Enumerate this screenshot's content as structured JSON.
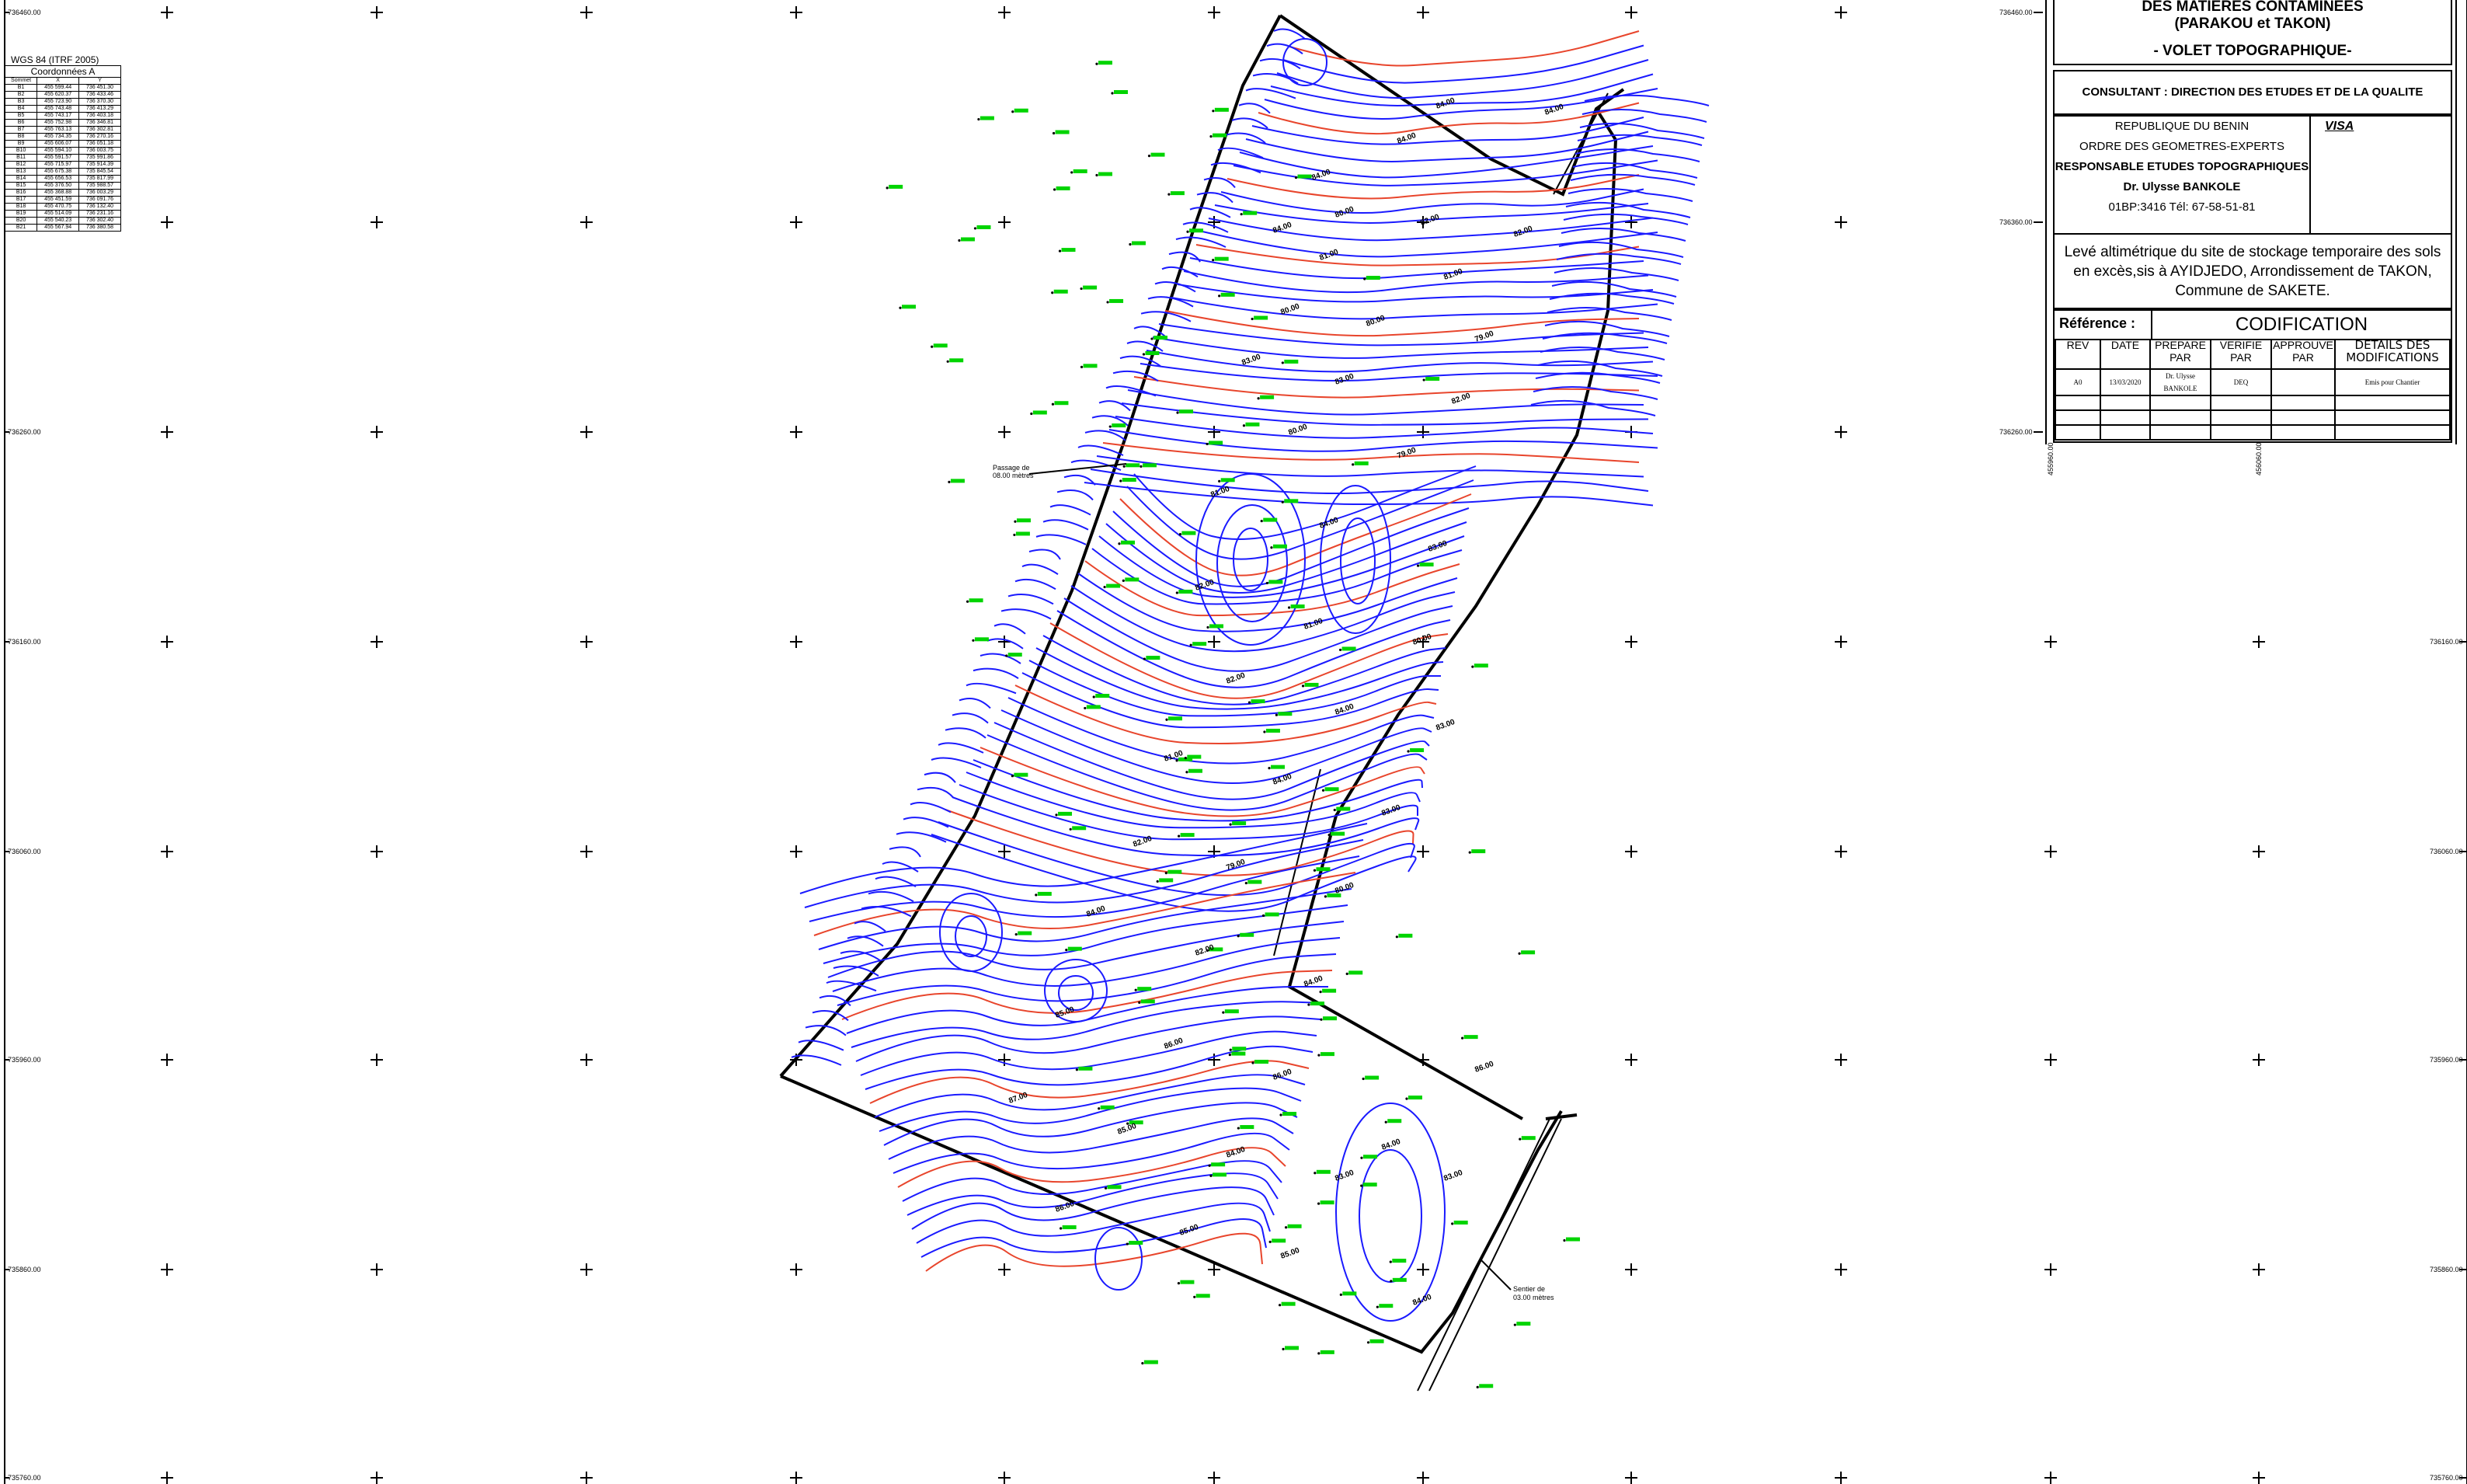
{
  "grid": {
    "left_ticks": [
      "736460.00",
      "736260.00",
      "736160.00",
      "736060.00",
      "735960.00",
      "735860.00",
      "735760.00"
    ],
    "mid_ticks": [
      "736460.00",
      "736360.00",
      "736260.00"
    ],
    "right_ticks": [
      "736160.00",
      "736060.00",
      "735960.00",
      "735860.00",
      "735760.00"
    ],
    "easting_ticks": [
      "455960.00",
      "456060.00"
    ]
  },
  "coordinates": {
    "system": "WGS 84 (ITRF 2005)",
    "caption": "Coordonnées A",
    "headers": [
      "Sommet",
      "X",
      "Y"
    ],
    "rows": [
      [
        "B1",
        "455 599.44",
        "736 451.30"
      ],
      [
        "B2",
        "455 620.37",
        "736 433.46"
      ],
      [
        "B3",
        "455 723.90",
        "736 370.30"
      ],
      [
        "B4",
        "455 743.48",
        "736 413.29"
      ],
      [
        "B5",
        "455 743.17",
        "736 403.18"
      ],
      [
        "B6",
        "455 752.98",
        "736 346.81"
      ],
      [
        "B7",
        "455 763.13",
        "736 302.81"
      ],
      [
        "B8",
        "455 734.35",
        "736 270.16"
      ],
      [
        "B9",
        "455 606.07",
        "736 051.18"
      ],
      [
        "B10",
        "455 594.10",
        "736 003.75"
      ],
      [
        "B11",
        "455 591.57",
        "735 991.86"
      ],
      [
        "B12",
        "455 715.97",
        "735 914.39"
      ],
      [
        "B13",
        "455 675.38",
        "735 845.54"
      ],
      [
        "B14",
        "455 656.53",
        "735 817.99"
      ],
      [
        "B15",
        "455 376.50",
        "735 988.57"
      ],
      [
        "B16",
        "455 368.88",
        "736 003.29"
      ],
      [
        "B17",
        "455 451.59",
        "736 091.76"
      ],
      [
        "B18",
        "455 470.75",
        "736 132.40"
      ],
      [
        "B19",
        "455 514.09",
        "736 231.16"
      ],
      [
        "B20",
        "455 540.23",
        "736 302.40"
      ],
      [
        "B21",
        "455 567.94",
        "736 380.58"
      ]
    ]
  },
  "annotations": {
    "passage": [
      "Passage de",
      "08.00 mètres"
    ],
    "sentier": [
      "Sentier de",
      "03.00 mètres"
    ],
    "contours": [
      "84.00",
      "84.00",
      "84.00",
      "84.00",
      "84.00",
      "80.00",
      "82.00",
      "82.00",
      "81.00",
      "81.00",
      "80.00",
      "80.00",
      "79.00",
      "83.00",
      "83.00",
      "82.00",
      "80.00",
      "79.00",
      "81.00",
      "84.00",
      "83.00",
      "82.00",
      "81.00",
      "80.00",
      "82.00",
      "84.00",
      "83.00",
      "81.00",
      "84.00",
      "83.00",
      "82.00",
      "79.00",
      "80.00",
      "84.00",
      "82.00",
      "84.00",
      "85.00",
      "86.00",
      "86.00",
      "87.00",
      "85.00",
      "84.00",
      "83.00",
      "86.00",
      "85.00",
      "85.00",
      "84.00",
      "83.00",
      "86.00",
      "84.00"
    ]
  },
  "cartouche": {
    "title_l1": "DES MATIERES CONTAMINEES",
    "title_l2": "(PARAKOU et TAKON)",
    "title_l3": "- VOLET TOPOGRAPHIQUE-",
    "consultant": "CONSULTANT : DIRECTION DES ETUDES ET DE LA QUALITE",
    "republic": "REPUBLIQUE DU BENIN",
    "order": "ORDRE DES GEOMETRES-EXPERTS",
    "responsible": "RESPONSABLE ETUDES TOPOGRAPHIQUES",
    "name": "Dr. Ulysse BANKOLE",
    "contact": "01BP:3416 Tél: 67-58-51-81",
    "visa": "VISA",
    "description": "Levé altimétrique du site de stockage temporaire des sols en excès,sis à AYIDJEDO, Arrondissement de TAKON, Commune de SAKETE.",
    "reference_label": "Référence :",
    "reference_value": "CODIFICATION",
    "rev_headers": [
      "REV",
      "DATE",
      "PREPARE PAR",
      "VERIFIE PAR",
      "APPROUVE PAR",
      "DETAILS DES MODIFICATIONS"
    ],
    "rev_row": [
      "A0",
      "13/03/2020",
      "Dr. Ulysse BANKOLE",
      "DEQ",
      "",
      "Emis pour Chantier"
    ]
  },
  "colors": {
    "contour_minor": "#1a1aff",
    "contour_major": "#e8452c",
    "point_label": "#00d400",
    "boundary": "#000000"
  }
}
